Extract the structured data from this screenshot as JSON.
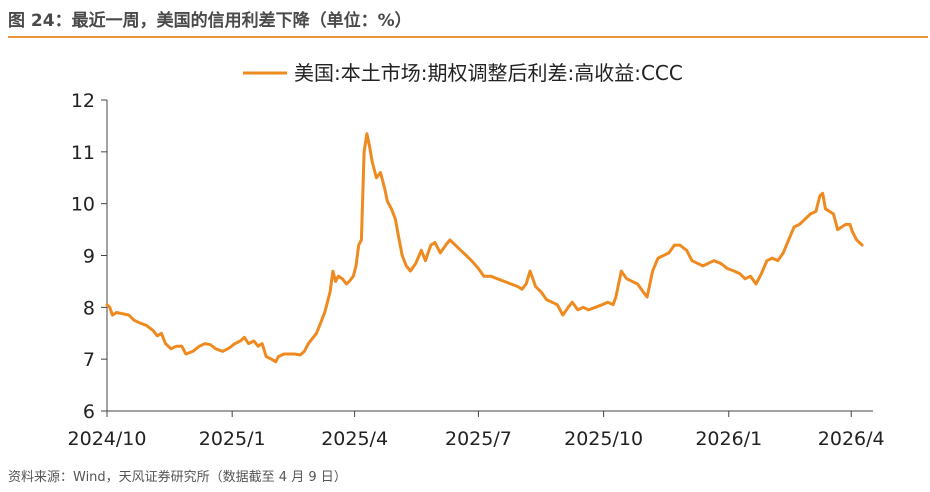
{
  "figure": {
    "title": "图 24：最近一周，美国的信用利差下降（单位：%）",
    "source": "资料来源：Wind，天风证券研究所（数据截至 4 月 9 日）"
  },
  "colors": {
    "accent": "#ee8a1f",
    "rule": "#e8953b",
    "axis": "#444444"
  },
  "chart_data": {
    "type": "line",
    "title": "",
    "xlabel": "",
    "ylabel": "",
    "ylim": [
      6,
      12
    ],
    "yticks": [
      6,
      7,
      8,
      9,
      10,
      11,
      12
    ],
    "xticks": [
      "2024/10",
      "2025/1",
      "2025/4",
      "2025/7",
      "2025/10",
      "2026/1",
      "2026/4"
    ],
    "grid": false,
    "legend": "top-center",
    "series": [
      {
        "name": "美国:本土市场:期权调整后利差:高收益:CCC",
        "color": "#ee8a1f",
        "points": [
          [
            "2024-10-01",
            8.05
          ],
          [
            "2024-10-03",
            8.0
          ],
          [
            "2024-10-05",
            7.85
          ],
          [
            "2024-10-08",
            7.9
          ],
          [
            "2024-10-12",
            7.88
          ],
          [
            "2024-10-17",
            7.85
          ],
          [
            "2024-10-21",
            7.75
          ],
          [
            "2024-10-25",
            7.7
          ],
          [
            "2024-10-30",
            7.65
          ],
          [
            "2024-11-04",
            7.55
          ],
          [
            "2024-11-07",
            7.45
          ],
          [
            "2024-11-10",
            7.5
          ],
          [
            "2024-11-13",
            7.3
          ],
          [
            "2024-11-17",
            7.2
          ],
          [
            "2024-11-21",
            7.25
          ],
          [
            "2024-11-25",
            7.25
          ],
          [
            "2024-11-28",
            7.1
          ],
          [
            "2024-12-03",
            7.15
          ],
          [
            "2024-12-08",
            7.25
          ],
          [
            "2024-12-12",
            7.3
          ],
          [
            "2024-12-16",
            7.28
          ],
          [
            "2024-12-20",
            7.2
          ],
          [
            "2024-12-25",
            7.15
          ],
          [
            "2024-12-30",
            7.22
          ],
          [
            "2025-01-03",
            7.3
          ],
          [
            "2025-01-07",
            7.35
          ],
          [
            "2025-01-10",
            7.42
          ],
          [
            "2025-01-13",
            7.3
          ],
          [
            "2025-01-17",
            7.35
          ],
          [
            "2025-01-20",
            7.25
          ],
          [
            "2025-01-23",
            7.3
          ],
          [
            "2025-01-26",
            7.05
          ],
          [
            "2025-01-30",
            7.0
          ],
          [
            "2025-02-02",
            6.95
          ],
          [
            "2025-02-04",
            7.05
          ],
          [
            "2025-02-08",
            7.1
          ],
          [
            "2025-02-12",
            7.1
          ],
          [
            "2025-02-16",
            7.1
          ],
          [
            "2025-02-20",
            7.08
          ],
          [
            "2025-02-23",
            7.15
          ],
          [
            "2025-02-26",
            7.3
          ],
          [
            "2025-03-01",
            7.4
          ],
          [
            "2025-03-04",
            7.5
          ],
          [
            "2025-03-07",
            7.7
          ],
          [
            "2025-03-10",
            7.9
          ],
          [
            "2025-03-12",
            8.1
          ],
          [
            "2025-03-14",
            8.3
          ],
          [
            "2025-03-16",
            8.7
          ],
          [
            "2025-03-18",
            8.5
          ],
          [
            "2025-03-20",
            8.6
          ],
          [
            "2025-03-23",
            8.55
          ],
          [
            "2025-03-26",
            8.45
          ],
          [
            "2025-03-28",
            8.5
          ],
          [
            "2025-03-31",
            8.6
          ],
          [
            "2025-04-02",
            8.8
          ],
          [
            "2025-04-04",
            9.2
          ],
          [
            "2025-04-06",
            9.3
          ],
          [
            "2025-04-08",
            11.0
          ],
          [
            "2025-04-10",
            11.35
          ],
          [
            "2025-04-12",
            11.1
          ],
          [
            "2025-04-14",
            10.8
          ],
          [
            "2025-04-17",
            10.5
          ],
          [
            "2025-04-20",
            10.6
          ],
          [
            "2025-04-23",
            10.3
          ],
          [
            "2025-04-25",
            10.05
          ],
          [
            "2025-04-28",
            9.9
          ],
          [
            "2025-05-01",
            9.7
          ],
          [
            "2025-05-03",
            9.4
          ],
          [
            "2025-05-06",
            9.0
          ],
          [
            "2025-05-09",
            8.8
          ],
          [
            "2025-05-12",
            8.7
          ],
          [
            "2025-05-16",
            8.85
          ],
          [
            "2025-05-20",
            9.1
          ],
          [
            "2025-05-23",
            8.9
          ],
          [
            "2025-05-27",
            9.2
          ],
          [
            "2025-05-30",
            9.25
          ],
          [
            "2025-06-03",
            9.05
          ],
          [
            "2025-06-07",
            9.2
          ],
          [
            "2025-06-10",
            9.3
          ],
          [
            "2025-06-14",
            9.2
          ],
          [
            "2025-06-18",
            9.1
          ],
          [
            "2025-06-22",
            9.0
          ],
          [
            "2025-06-26",
            8.9
          ],
          [
            "2025-07-01",
            8.75
          ],
          [
            "2025-07-05",
            8.6
          ],
          [
            "2025-07-10",
            8.6
          ],
          [
            "2025-07-15",
            8.55
          ],
          [
            "2025-07-20",
            8.5
          ],
          [
            "2025-07-25",
            8.45
          ],
          [
            "2025-07-30",
            8.4
          ],
          [
            "2025-08-02",
            8.35
          ],
          [
            "2025-08-05",
            8.45
          ],
          [
            "2025-08-08",
            8.7
          ],
          [
            "2025-08-12",
            8.4
          ],
          [
            "2025-08-16",
            8.3
          ],
          [
            "2025-08-20",
            8.15
          ],
          [
            "2025-08-24",
            8.1
          ],
          [
            "2025-08-28",
            8.05
          ],
          [
            "2025-09-01",
            7.85
          ],
          [
            "2025-09-05",
            8.0
          ],
          [
            "2025-09-08",
            8.1
          ],
          [
            "2025-09-12",
            7.95
          ],
          [
            "2025-09-16",
            8.0
          ],
          [
            "2025-09-20",
            7.95
          ],
          [
            "2025-09-25",
            8.0
          ],
          [
            "2025-09-30",
            8.05
          ],
          [
            "2025-10-04",
            8.1
          ],
          [
            "2025-10-08",
            8.05
          ],
          [
            "2025-10-10",
            8.2
          ],
          [
            "2025-10-14",
            8.7
          ],
          [
            "2025-10-18",
            8.55
          ],
          [
            "2025-10-22",
            8.5
          ],
          [
            "2025-10-26",
            8.45
          ],
          [
            "2025-10-30",
            8.3
          ],
          [
            "2025-11-02",
            8.2
          ],
          [
            "2025-11-06",
            8.7
          ],
          [
            "2025-11-10",
            8.95
          ],
          [
            "2025-11-14",
            9.0
          ],
          [
            "2025-11-18",
            9.05
          ],
          [
            "2025-11-22",
            9.2
          ],
          [
            "2025-11-26",
            9.2
          ],
          [
            "2025-12-01",
            9.1
          ],
          [
            "2025-12-05",
            8.9
          ],
          [
            "2025-12-09",
            8.85
          ],
          [
            "2025-12-13",
            8.8
          ],
          [
            "2025-12-17",
            8.85
          ],
          [
            "2025-12-21",
            8.9
          ],
          [
            "2025-12-26",
            8.85
          ],
          [
            "2025-12-31",
            8.75
          ],
          [
            "2026-01-05",
            8.7
          ],
          [
            "2026-01-09",
            8.65
          ],
          [
            "2026-01-13",
            8.55
          ],
          [
            "2026-01-17",
            8.6
          ],
          [
            "2026-01-21",
            8.45
          ],
          [
            "2026-01-25",
            8.65
          ],
          [
            "2026-01-29",
            8.9
          ],
          [
            "2026-02-02",
            8.95
          ],
          [
            "2026-02-06",
            8.9
          ],
          [
            "2026-02-10",
            9.05
          ],
          [
            "2026-02-14",
            9.3
          ],
          [
            "2026-02-18",
            9.55
          ],
          [
            "2026-02-22",
            9.6
          ],
          [
            "2026-02-26",
            9.7
          ],
          [
            "2026-03-02",
            9.8
          ],
          [
            "2026-03-06",
            9.85
          ],
          [
            "2026-03-09",
            10.15
          ],
          [
            "2026-03-11",
            10.2
          ],
          [
            "2026-03-13",
            9.9
          ],
          [
            "2026-03-16",
            9.85
          ],
          [
            "2026-03-19",
            9.8
          ],
          [
            "2026-03-22",
            9.5
          ],
          [
            "2026-03-25",
            9.55
          ],
          [
            "2026-03-28",
            9.6
          ],
          [
            "2026-03-31",
            9.6
          ],
          [
            "2026-04-02",
            9.45
          ],
          [
            "2026-04-05",
            9.3
          ],
          [
            "2026-04-07",
            9.25
          ],
          [
            "2026-04-09",
            9.2
          ]
        ]
      }
    ]
  }
}
